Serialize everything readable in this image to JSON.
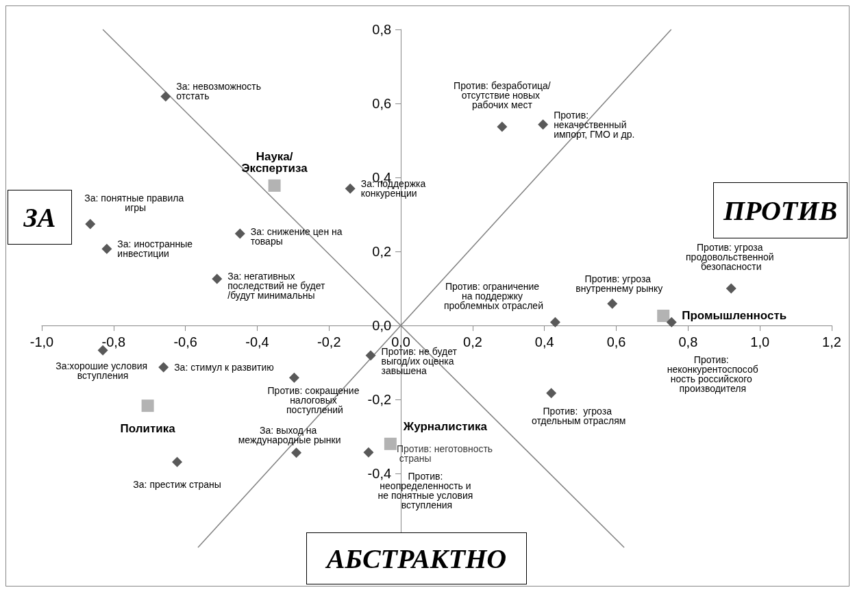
{
  "chart_data": {
    "type": "scatter",
    "annotations": [
      "ЗА",
      "ПРОТИВ",
      "АБСТРАКТНО",
      {
        "text": "Против: неготовность страны",
        "x": -0.029,
        "y": -0.32
      }
    ],
    "xlim": [
      -1.0,
      1.2
    ],
    "ylim": [
      -0.6,
      0.8
    ],
    "xticks": [
      {
        "value": -1.0,
        "label": "-1,0"
      },
      {
        "value": -0.8,
        "label": "-0,8"
      },
      {
        "value": -0.6,
        "label": "-0,6"
      },
      {
        "value": -0.4,
        "label": "-0,4"
      },
      {
        "value": -0.2,
        "label": "-0,2"
      },
      {
        "value": 0,
        "label": "0,0"
      },
      {
        "value": 0.2,
        "label": "0,2"
      },
      {
        "value": 0.4,
        "label": "0,4"
      },
      {
        "value": 0.6,
        "label": "0,6"
      },
      {
        "value": 0.8,
        "label": "0,8"
      },
      {
        "value": 1.0,
        "label": "1,0"
      },
      {
        "value": 1.2,
        "label": "1,2"
      }
    ],
    "yticks": [
      {
        "value": -0.4,
        "label": "-0,4"
      },
      {
        "value": -0.2,
        "label": "-0,2"
      },
      {
        "value": 0,
        "label": "0,0"
      },
      {
        "value": 0.2,
        "label": "0,2"
      },
      {
        "value": 0.4,
        "label": "0,4"
      },
      {
        "value": 0.6,
        "label": "0,6"
      },
      {
        "value": 0.8,
        "label": "0,8"
      }
    ],
    "grid": false,
    "series": [
      {
        "type": "scatter",
        "color": "#595959",
        "marker": "diamond",
        "x": [
          -0.655,
          -0.141,
          -0.448,
          -0.865,
          -0.819,
          -0.512,
          -0.83,
          -0.661,
          -0.297,
          -0.084,
          -0.623,
          -0.291,
          -0.09,
          0.282,
          0.396,
          0.43,
          0.589,
          0.92,
          0.754,
          0.419
        ],
        "values": [
          0.619,
          0.37,
          0.248,
          0.274,
          0.207,
          0.126,
          -0.067,
          -0.113,
          -0.141,
          -0.081,
          -0.369,
          -0.344,
          -0.343,
          0.537,
          0.543,
          0.009,
          0.059,
          0.1,
          0.009,
          -0.183
        ],
        "value_labels": [
          "За: невозможность отстать",
          "За: поддержка конкуренции",
          "За: снижение цен на товары",
          "За: понятные правила игры",
          "За: иностранные инвестиции",
          "За: негативных последствий не будет/будут минимальны",
          "За:хорошие условия вступления",
          "За: стимул к развитию",
          "Против: сокращение налоговых поступлений",
          "Против: не будет выгод/их оценка завышена",
          "За: престиж страны",
          "За: выход на международные рынки",
          "Против: неопределенность и не понятные условия вступления",
          "Против: безработица/отсутствие новых рабочих мест",
          "Против: некачественный импорт, ГМО и др.",
          "Против: ограничение на поддержку проблемных отраслей",
          "Против: угроза внутреннему рынку",
          "Против: угроза продовольственной безопасности",
          "Против: неконкурентоспособность российского производителя",
          "Против:  угроза отдельным отраслям"
        ]
      },
      {
        "type": "scatter",
        "color": "#b3b3b3",
        "marker": "square",
        "x": [
          -0.352,
          0.731,
          -0.705,
          -0.029
        ],
        "values": [
          0.378,
          0.026,
          -0.217,
          -0.32
        ],
        "value_labels": [
          "Наука/Экспертиза",
          "Промышленность",
          "Политика",
          "Журналистика"
        ]
      },
      {
        "type": "line",
        "color": "#808080",
        "marker": "none",
        "x": [
          -0.83,
          0.622
        ],
        "values": [
          0.8,
          -0.6
        ]
      },
      {
        "type": "line",
        "color": "#808080",
        "marker": "none",
        "x": [
          -0.565,
          0.753
        ],
        "values": [
          -0.6,
          0.8
        ]
      }
    ]
  }
}
